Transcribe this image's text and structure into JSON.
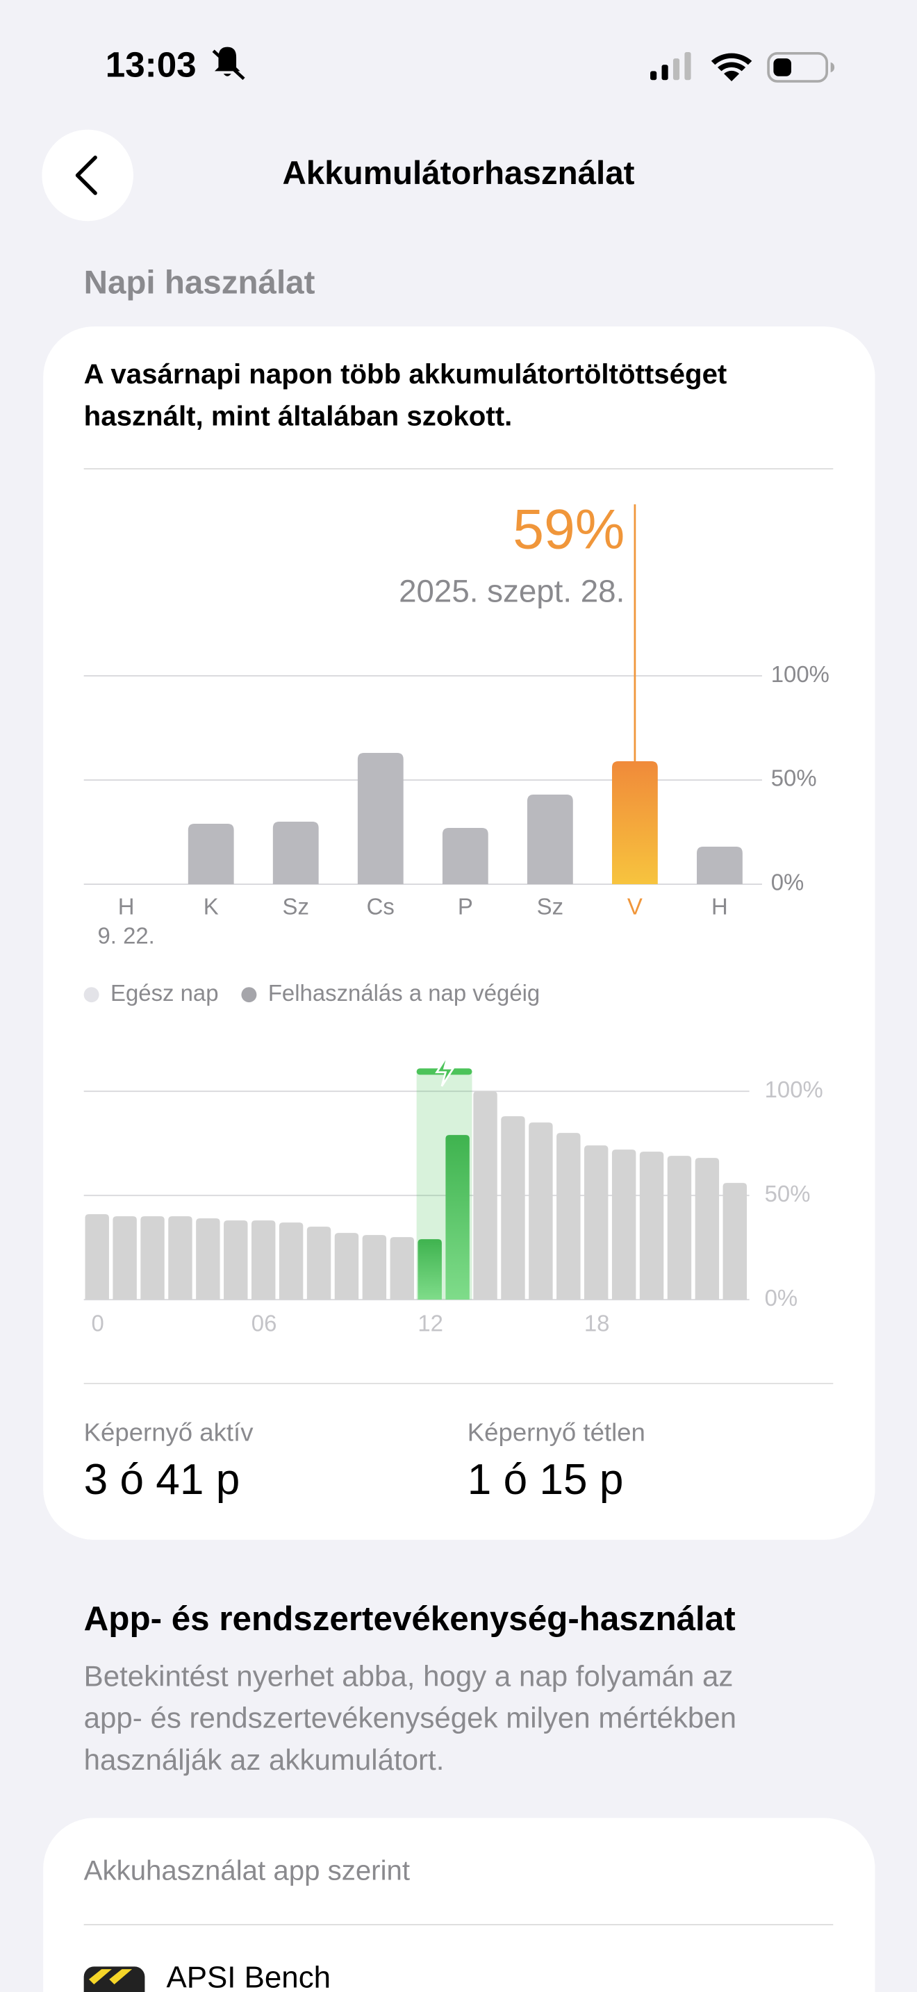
{
  "status_bar": {
    "time": "13:03"
  },
  "header": {
    "title": "Akkumulátorhasználat"
  },
  "section": {
    "title": "Napi használat"
  },
  "card": {
    "message_lines": [
      "A vasárnapi napon több akkumulátortöltöttséget",
      "használt, mint általában szokott."
    ],
    "stats": [
      {
        "label": "Képernyő aktív",
        "value": "3 ó 41 p"
      },
      {
        "label": "Képernyő tétlen",
        "value": "1 ó 15 p"
      }
    ]
  },
  "activity": {
    "title": "App- és rendszertevékenység-használat",
    "description_lines": [
      "Betekintést nyerhet abba, hogy a nap folyamán az",
      "app- és rendszertevékenységek milyen mértékben",
      "használják az akkumulátort."
    ]
  },
  "apps": {
    "title": "Akkuhasználat app szerint",
    "items": [
      {
        "name": "APSI Bench"
      }
    ]
  },
  "chart_data": [
    {
      "type": "bar",
      "categories": [
        "H",
        "K",
        "Sz",
        "Cs",
        "P",
        "Sz",
        "V",
        "H"
      ],
      "date_label": "9. 22.",
      "values": [
        0,
        29,
        30,
        63,
        27,
        43,
        59,
        18
      ],
      "color": "#b9b9be",
      "highlight_index": 6,
      "highlight_color": "#f0963a",
      "annotations": [
        "59%",
        "2025. szept. 28."
      ],
      "ylim": [
        0,
        100
      ],
      "yticks": [
        {
          "value": 0,
          "label": "0%"
        },
        {
          "value": 50,
          "label": "50%"
        },
        {
          "value": 100,
          "label": "100%"
        }
      ],
      "grid": true,
      "legend": [
        {
          "name": "Egész nap",
          "color": "#e3e3e8"
        },
        {
          "name": "Felhasználás a nap végéig",
          "color": "#a5a5aa"
        }
      ]
    },
    {
      "type": "bar",
      "values": [
        41,
        40,
        40,
        40,
        39,
        38,
        38,
        37,
        35,
        32,
        31,
        30,
        29,
        79,
        100,
        88,
        85,
        80,
        74,
        72,
        71,
        69,
        68,
        56
      ],
      "color": "#d3d3d3",
      "charging_range": [
        12,
        14
      ],
      "charging_color": "#4cc35a",
      "ylim": [
        0,
        100
      ],
      "yticks": [
        {
          "value": 0,
          "label": "0%"
        },
        {
          "value": 50,
          "label": "50%"
        },
        {
          "value": 100,
          "label": "100%"
        }
      ],
      "grid": true,
      "xlim": [
        0,
        24
      ],
      "xticks": [
        0,
        {
          "value": 6,
          "label": "06"
        },
        12,
        18
      ]
    }
  ]
}
